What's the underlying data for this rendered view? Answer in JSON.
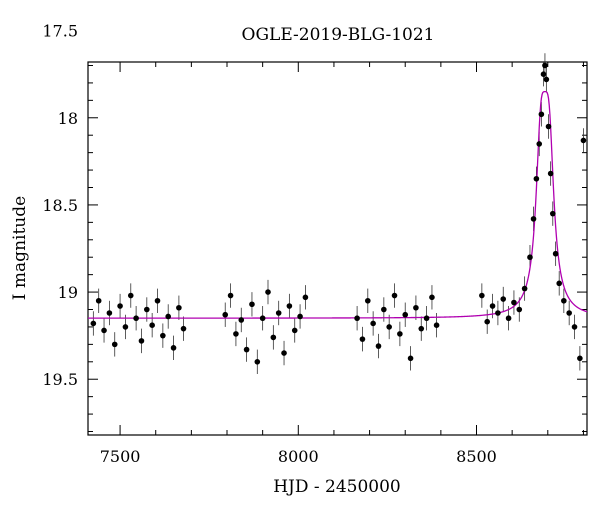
{
  "chart_data": {
    "type": "scatter",
    "title": "OGLE-2019-BLG-1021",
    "xlabel": "HJD - 2450000",
    "ylabel": "I magnitude",
    "xlim": [
      7410,
      8810
    ],
    "ylim": [
      19.82,
      17.68
    ],
    "y_inverted": true,
    "x_ticks": [
      7500,
      8000,
      8500
    ],
    "y_ticks": [
      17.5,
      18,
      18.5,
      19,
      19.5
    ],
    "x_tick_labels": [
      "7500",
      "8000",
      "8500"
    ],
    "y_tick_labels": [
      "17.5",
      "18",
      "18.5",
      "19",
      "19.5"
    ],
    "colors": {
      "data": "#000000",
      "model": "#b000b0"
    },
    "model": {
      "name": "",
      "baseline": 19.15,
      "t0": 8692,
      "peak": 17.85,
      "width": 20
    },
    "observing_seasons": [
      {
        "start": 7420,
        "end": 7680
      },
      {
        "start": 7790,
        "end": 8030
      },
      {
        "start": 8160,
        "end": 8390
      },
      {
        "start": 8510,
        "end": 8800
      }
    ],
    "series": [
      {
        "name": "",
        "points": [
          [
            7425,
            19.18
          ],
          [
            7440,
            19.05
          ],
          [
            7455,
            19.22
          ],
          [
            7470,
            19.12
          ],
          [
            7485,
            19.3
          ],
          [
            7500,
            19.08
          ],
          [
            7515,
            19.2
          ],
          [
            7530,
            19.02
          ],
          [
            7545,
            19.15
          ],
          [
            7560,
            19.28
          ],
          [
            7575,
            19.1
          ],
          [
            7590,
            19.19
          ],
          [
            7605,
            19.05
          ],
          [
            7620,
            19.25
          ],
          [
            7635,
            19.14
          ],
          [
            7650,
            19.32
          ],
          [
            7665,
            19.09
          ],
          [
            7678,
            19.21
          ],
          [
            7795,
            19.13
          ],
          [
            7810,
            19.02
          ],
          [
            7825,
            19.24
          ],
          [
            7840,
            19.16
          ],
          [
            7855,
            19.33
          ],
          [
            7870,
            19.07
          ],
          [
            7885,
            19.4
          ],
          [
            7900,
            19.15
          ],
          [
            7915,
            19.0
          ],
          [
            7930,
            19.26
          ],
          [
            7945,
            19.12
          ],
          [
            7960,
            19.35
          ],
          [
            7975,
            19.08
          ],
          [
            7990,
            19.22
          ],
          [
            8005,
            19.14
          ],
          [
            8020,
            19.03
          ],
          [
            8165,
            19.15
          ],
          [
            8180,
            19.27
          ],
          [
            8195,
            19.05
          ],
          [
            8210,
            19.18
          ],
          [
            8225,
            19.31
          ],
          [
            8240,
            19.1
          ],
          [
            8255,
            19.2
          ],
          [
            8270,
            19.02
          ],
          [
            8285,
            19.24
          ],
          [
            8300,
            19.13
          ],
          [
            8315,
            19.38
          ],
          [
            8330,
            19.09
          ],
          [
            8345,
            19.21
          ],
          [
            8360,
            19.15
          ],
          [
            8375,
            19.03
          ],
          [
            8388,
            19.19
          ],
          [
            8515,
            19.02
          ],
          [
            8530,
            19.17
          ],
          [
            8545,
            19.08
          ],
          [
            8560,
            19.12
          ],
          [
            8575,
            19.04
          ],
          [
            8590,
            19.15
          ],
          [
            8605,
            19.06
          ],
          [
            8620,
            19.1
          ],
          [
            8635,
            18.98
          ],
          [
            8650,
            18.8
          ],
          [
            8660,
            18.58
          ],
          [
            8668,
            18.35
          ],
          [
            8676,
            18.15
          ],
          [
            8682,
            17.98
          ],
          [
            8688,
            17.75
          ],
          [
            8692,
            17.7
          ],
          [
            8696,
            17.78
          ],
          [
            8702,
            18.05
          ],
          [
            8708,
            18.32
          ],
          [
            8714,
            18.55
          ],
          [
            8722,
            18.78
          ],
          [
            8732,
            18.95
          ],
          [
            8745,
            19.05
          ],
          [
            8760,
            19.12
          ],
          [
            8775,
            19.2
          ],
          [
            8790,
            19.38
          ],
          [
            8800,
            18.13
          ]
        ],
        "error": 0.07
      }
    ]
  }
}
